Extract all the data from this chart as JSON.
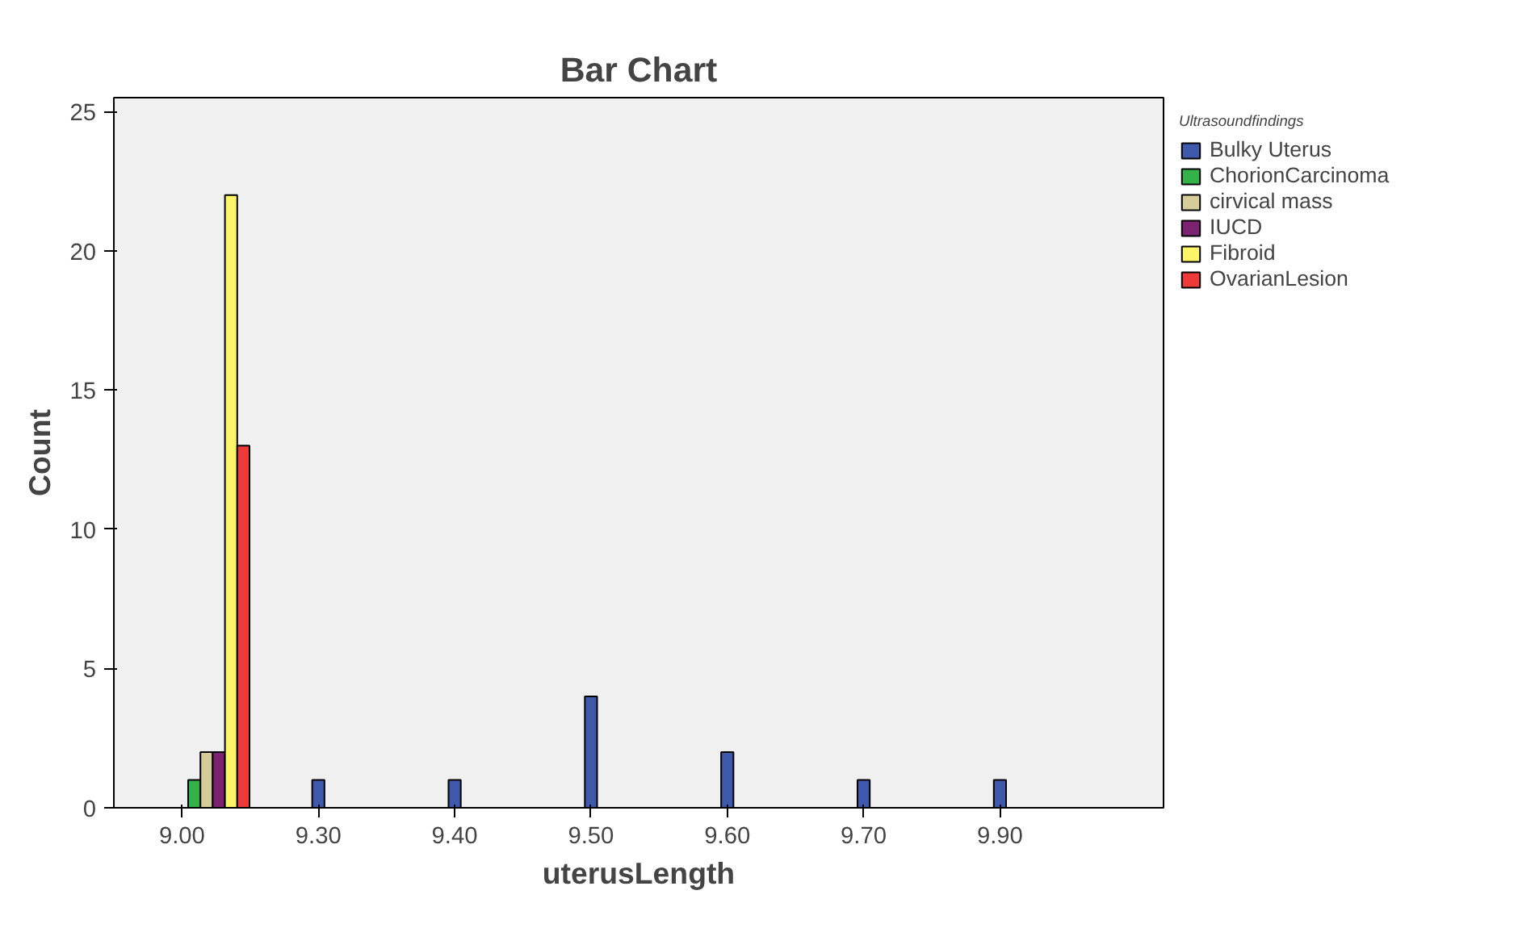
{
  "chart_data": {
    "type": "bar",
    "title": "Bar Chart",
    "xlabel": "uterusLength",
    "ylabel": "Count",
    "legend_title": "Ultrasoundfindings",
    "categories": [
      "9.00",
      "9.30",
      "9.40",
      "9.50",
      "9.60",
      "9.70",
      "9.90"
    ],
    "series": [
      {
        "name": "Bulky Uterus",
        "color": "#3e58ac",
        "values": [
          null,
          1,
          1,
          4,
          2,
          1,
          1
        ]
      },
      {
        "name": "ChorionCarcinoma",
        "color": "#33b24a",
        "values": [
          1,
          null,
          null,
          null,
          null,
          null,
          null
        ]
      },
      {
        "name": "cirvical mass",
        "color": "#d5cc9a",
        "values": [
          2,
          null,
          null,
          null,
          null,
          null,
          null
        ]
      },
      {
        "name": "IUCD",
        "color": "#7b2270",
        "values": [
          2,
          null,
          null,
          null,
          null,
          null,
          null
        ]
      },
      {
        "name": "Fibroid",
        "color": "#fcf568",
        "values": [
          22,
          null,
          null,
          null,
          null,
          null,
          null
        ]
      },
      {
        "name": "OvarianLesion",
        "color": "#ef3a3a",
        "values": [
          13,
          null,
          null,
          null,
          null,
          null,
          null
        ]
      }
    ],
    "ylim": [
      0,
      25.5
    ],
    "yticks": [
      0,
      5,
      10,
      15,
      20,
      25
    ],
    "grid": false,
    "legend": "top right"
  }
}
